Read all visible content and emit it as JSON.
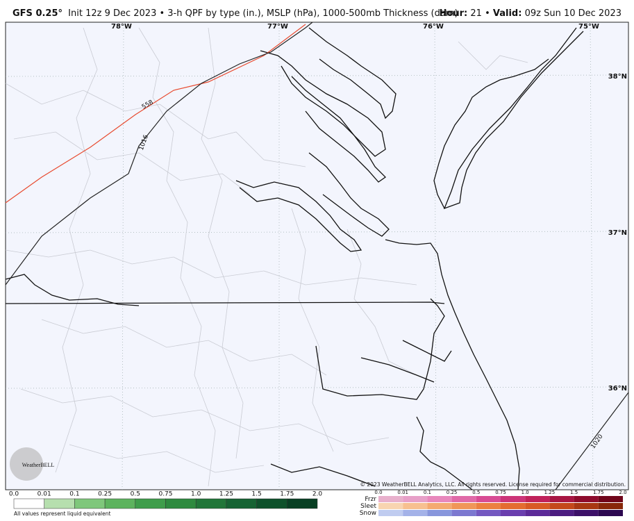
{
  "header": {
    "model": "GFS 0.25°",
    "description": "Init 12z 9 Dec 2023 • 3-h QPF by type (in.), MSLP (hPa), 1000-500mb Thickness (dam)",
    "hour_label": "Hour:",
    "hour": "21",
    "separator": "•",
    "valid_label": "Valid:",
    "valid": "09z Sun 10 Dec 2023"
  },
  "map": {
    "longitude_labels": [
      "78°W",
      "77°W",
      "76°W",
      "75°W"
    ],
    "latitude_labels": [
      "38°N",
      "37°N",
      "36°N"
    ],
    "contour_labels": [
      "558",
      "1016",
      "1020"
    ],
    "logo": "WeatherBELL",
    "copyright": "© 2023 WeatherBELL Analytics, LLC. All rights reserved. License required for commercial distribution."
  },
  "rain_legend": {
    "ticks": [
      "0.0",
      "0.01",
      "0.1",
      "0.25",
      "0.5",
      "0.75",
      "1.0",
      "1.25",
      "1.5",
      "1.75",
      "2.0"
    ],
    "note": "All values represent liquid equivalent"
  },
  "ptype_legend": {
    "types": [
      "Frzr",
      "Sleet",
      "Snow"
    ],
    "ticks": [
      "0.0",
      "0.01",
      "0.1",
      "0.25",
      "0.5",
      "0.75",
      "1.0",
      "1.25",
      "1.5",
      "1.75",
      "2.0"
    ]
  }
}
